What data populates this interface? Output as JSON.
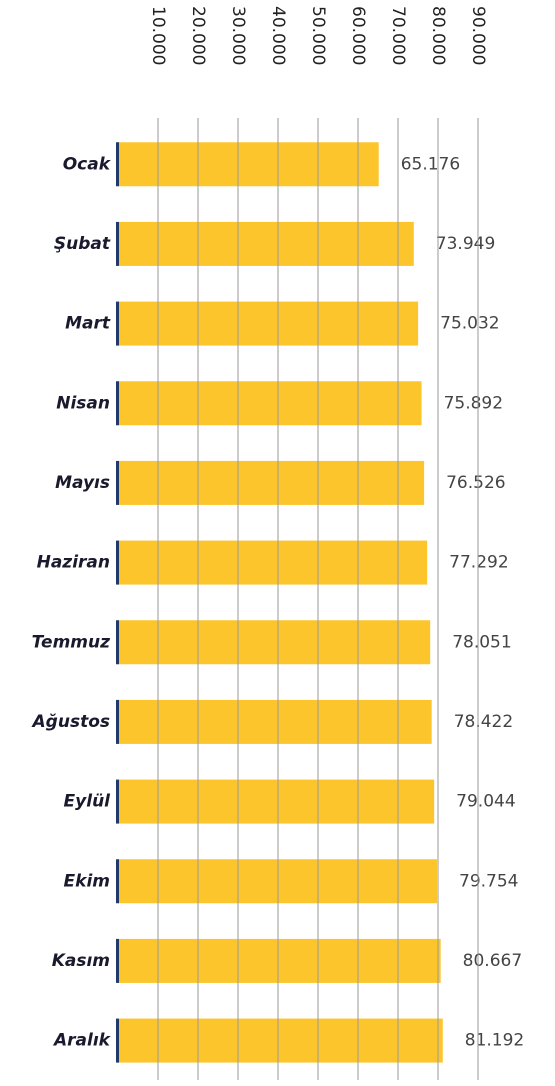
{
  "chart_data": {
    "type": "bar",
    "orientation": "horizontal",
    "categories": [
      "Ocak",
      "Şubat",
      "Mart",
      "Nisan",
      "Mayıs",
      "Haziran",
      "Temmuz",
      "Ağustos",
      "Eylül",
      "Ekim",
      "Kasım",
      "Aralık"
    ],
    "values": [
      65176,
      73949,
      75032,
      75892,
      76526,
      77292,
      78051,
      78422,
      79044,
      79754,
      80667,
      81192
    ],
    "value_labels": [
      "65.176",
      "73.949",
      "75.032",
      "75.892",
      "76.526",
      "77.292",
      "78.051",
      "78.422",
      "79.044",
      "79.754",
      "80.667",
      "81.192"
    ],
    "color": "#fdc52c",
    "xlim": [
      0,
      90000
    ],
    "xticks": [
      {
        "value": 10000,
        "label": "10.000"
      },
      {
        "value": 20000,
        "label": "20.000"
      },
      {
        "value": 30000,
        "label": "30.000"
      },
      {
        "value": 40000,
        "label": "40.000"
      },
      {
        "value": 50000,
        "label": "50.000"
      },
      {
        "value": 60000,
        "label": "60.000"
      },
      {
        "value": 70000,
        "label": "70.000"
      },
      {
        "value": 80000,
        "label": "80.000"
      },
      {
        "value": 90000,
        "label": "90.000"
      }
    ],
    "grid": true
  }
}
